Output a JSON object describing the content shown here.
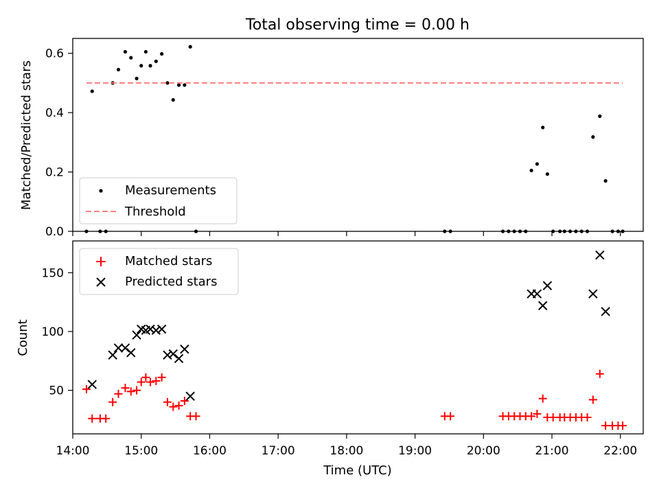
{
  "figure": {
    "title": "Total observing time = 0.00 h",
    "xlabel": "Time (UTC)"
  },
  "chart_data": [
    {
      "type": "scatter",
      "ylabel": "Matched/Predicted stars",
      "xlim": [
        "14:00",
        "22:20"
      ],
      "ylim": [
        0,
        0.65
      ],
      "yticks": [
        0.0,
        0.2,
        0.4,
        0.6
      ],
      "ytick_labels": [
        "0.0",
        "0.2",
        "0.4",
        "0.6"
      ],
      "grid": false,
      "legend_position": "lower-left",
      "series": [
        {
          "name": "Measurements",
          "marker": "dot",
          "color": "#000000",
          "points": [
            [
              "14:12",
              0.0
            ],
            [
              "14:17",
              0.472
            ],
            [
              "14:24",
              0.0
            ],
            [
              "14:29",
              0.0
            ],
            [
              "14:35",
              0.5
            ],
            [
              "14:40",
              0.545
            ],
            [
              "14:46",
              0.605
            ],
            [
              "14:51",
              0.585
            ],
            [
              "14:56",
              0.515
            ],
            [
              "15:00",
              0.558
            ],
            [
              "15:04",
              0.605
            ],
            [
              "15:08",
              0.558
            ],
            [
              "15:13",
              0.573
            ],
            [
              "15:18",
              0.598
            ],
            [
              "15:23",
              0.5
            ],
            [
              "15:28",
              0.443
            ],
            [
              "15:33",
              0.493
            ],
            [
              "15:38",
              0.493
            ],
            [
              "15:43",
              0.622
            ],
            [
              "15:48",
              0.0
            ],
            [
              "19:26",
              0.0
            ],
            [
              "19:31",
              0.0
            ],
            [
              "20:17",
              0.0
            ],
            [
              "20:22",
              0.0
            ],
            [
              "20:27",
              0.0
            ],
            [
              "20:32",
              0.0
            ],
            [
              "20:37",
              0.0
            ],
            [
              "20:42",
              0.205
            ],
            [
              "20:47",
              0.227
            ],
            [
              "20:52",
              0.35
            ],
            [
              "20:56",
              0.193
            ],
            [
              "21:01",
              0.0
            ],
            [
              "21:07",
              0.0
            ],
            [
              "21:11",
              0.0
            ],
            [
              "21:16",
              0.0
            ],
            [
              "21:21",
              0.0
            ],
            [
              "21:26",
              0.0
            ],
            [
              "21:31",
              0.0
            ],
            [
              "21:36",
              0.318
            ],
            [
              "21:42",
              0.388
            ],
            [
              "21:47",
              0.17
            ],
            [
              "21:53",
              0.0
            ],
            [
              "21:58",
              0.0
            ],
            [
              "22:02",
              0.0
            ]
          ]
        },
        {
          "name": "Threshold",
          "line": "dashed",
          "color": "#ff7f7f",
          "x": [
            "14:12",
            "22:02"
          ],
          "y": [
            0.5,
            0.5
          ]
        }
      ]
    },
    {
      "type": "scatter",
      "ylabel": "Count",
      "xlabel": "Time (UTC)",
      "xlim": [
        "14:00",
        "22:20"
      ],
      "ylim": [
        13,
        177
      ],
      "xticks": [
        "14:00",
        "15:00",
        "16:00",
        "17:00",
        "18:00",
        "19:00",
        "20:00",
        "21:00",
        "22:00"
      ],
      "yticks": [
        50,
        100,
        150
      ],
      "ytick_labels": [
        "50",
        "100",
        "150"
      ],
      "grid": false,
      "legend_position": "upper-left",
      "series": [
        {
          "name": "Matched stars",
          "marker": "plus",
          "color": "#ff0000",
          "points": [
            [
              "14:12",
              51
            ],
            [
              "14:17",
              26
            ],
            [
              "14:24",
              26
            ],
            [
              "14:29",
              26
            ],
            [
              "14:35",
              40
            ],
            [
              "14:40",
              47
            ],
            [
              "14:46",
              52
            ],
            [
              "14:51",
              49
            ],
            [
              "14:56",
              50
            ],
            [
              "15:00",
              57
            ],
            [
              "15:04",
              61
            ],
            [
              "15:08",
              57
            ],
            [
              "15:13",
              58
            ],
            [
              "15:18",
              61
            ],
            [
              "15:23",
              40
            ],
            [
              "15:28",
              36
            ],
            [
              "15:33",
              37
            ],
            [
              "15:38",
              41
            ],
            [
              "15:43",
              28
            ],
            [
              "15:48",
              28
            ],
            [
              "19:26",
              28
            ],
            [
              "19:31",
              28
            ],
            [
              "20:17",
              28
            ],
            [
              "20:22",
              28
            ],
            [
              "20:27",
              28
            ],
            [
              "20:32",
              28
            ],
            [
              "20:37",
              28
            ],
            [
              "20:42",
              28
            ],
            [
              "20:47",
              30
            ],
            [
              "20:52",
              43
            ],
            [
              "20:56",
              27
            ],
            [
              "21:01",
              27
            ],
            [
              "21:07",
              27
            ],
            [
              "21:11",
              27
            ],
            [
              "21:16",
              27
            ],
            [
              "21:21",
              27
            ],
            [
              "21:26",
              27
            ],
            [
              "21:31",
              27
            ],
            [
              "21:36",
              42
            ],
            [
              "21:42",
              64
            ],
            [
              "21:47",
              20
            ],
            [
              "21:53",
              20
            ],
            [
              "21:58",
              20
            ],
            [
              "22:02",
              20
            ]
          ]
        },
        {
          "name": "Predicted stars",
          "marker": "x",
          "color": "#000000",
          "points": [
            [
              "14:17",
              55
            ],
            [
              "14:35",
              80
            ],
            [
              "14:40",
              86
            ],
            [
              "14:46",
              86
            ],
            [
              "14:51",
              82
            ],
            [
              "14:56",
              97
            ],
            [
              "15:00",
              102
            ],
            [
              "15:04",
              101
            ],
            [
              "15:08",
              102
            ],
            [
              "15:13",
              101
            ],
            [
              "15:18",
              102
            ],
            [
              "15:23",
              80
            ],
            [
              "15:28",
              81
            ],
            [
              "15:33",
              77
            ],
            [
              "15:38",
              85
            ],
            [
              "15:43",
              45
            ],
            [
              "20:42",
              132
            ],
            [
              "20:47",
              132
            ],
            [
              "20:52",
              122
            ],
            [
              "20:56",
              139
            ],
            [
              "21:36",
              132
            ],
            [
              "21:42",
              165
            ],
            [
              "21:47",
              117
            ]
          ]
        }
      ]
    }
  ]
}
